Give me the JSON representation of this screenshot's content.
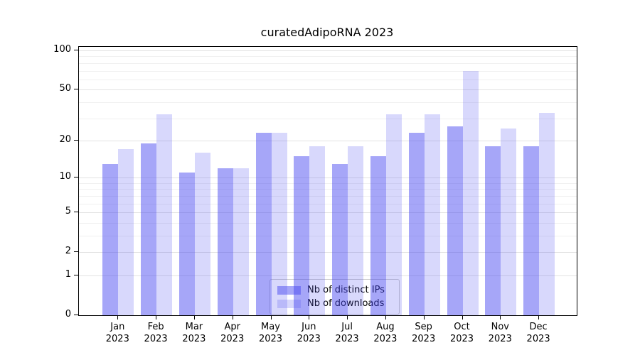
{
  "chart_data": {
    "type": "bar",
    "title": "curatedAdipoRNA 2023",
    "categories": [
      "Jan 2023",
      "Feb 2023",
      "Mar 2023",
      "Apr 2023",
      "May 2023",
      "Jun 2023",
      "Jul 2023",
      "Aug 2023",
      "Sep 2023",
      "Oct 2023",
      "Nov 2023",
      "Dec 2023"
    ],
    "series": [
      {
        "name": "Nb of distinct IPs",
        "values": [
          13,
          19,
          11,
          12,
          23,
          15,
          13,
          15,
          23,
          26,
          18,
          18
        ]
      },
      {
        "name": "Nb of downloads",
        "values": [
          17,
          32,
          16,
          12,
          23,
          18,
          18,
          32,
          32,
          70,
          25,
          33
        ]
      }
    ],
    "colors": {
      "distinct_ips": "rgba(70,70,240,0.48)",
      "downloads": "rgba(70,70,240,0.21)",
      "distinct_ips_hex": "#a7a7f7",
      "downloads_hex": "#d9d9f9"
    },
    "yscale": "log1p",
    "ylim": [
      0,
      105
    ],
    "yticks": [
      0,
      1,
      2,
      5,
      10,
      20,
      50,
      100
    ],
    "gridline_values": [
      1,
      2,
      3,
      4,
      5,
      6,
      7,
      8,
      9,
      10,
      20,
      30,
      40,
      50,
      60,
      70,
      80,
      90,
      100
    ],
    "grid": "horizontal",
    "legend_position": "inside-bottom-center"
  }
}
